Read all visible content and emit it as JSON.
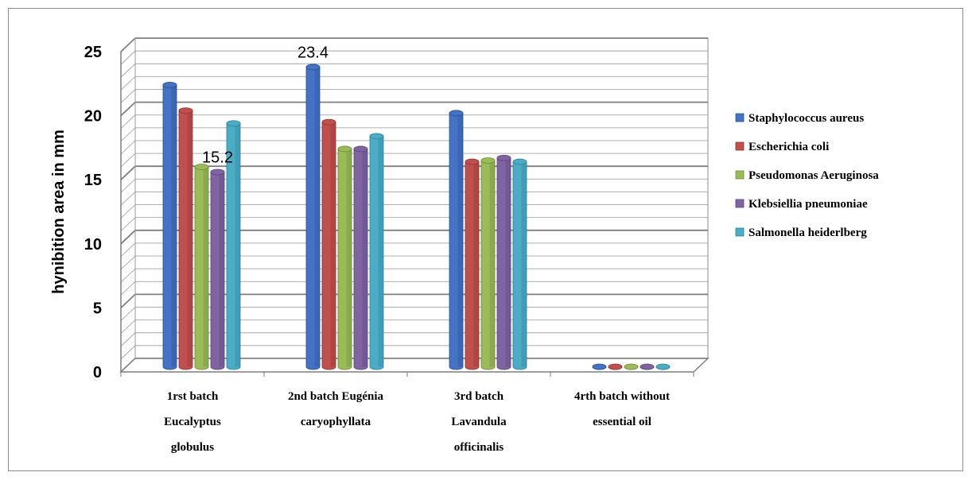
{
  "chart_data": {
    "type": "bar",
    "ylabel": "hynibition area in mm",
    "ylim": [
      0,
      25
    ],
    "yticks": [
      0,
      5,
      10,
      15,
      20,
      25
    ],
    "minor_gridline_step": 1,
    "grid": true,
    "legend_position": "right",
    "categories": [
      [
        "1rst  batch",
        "Eucalyptus",
        "globulus"
      ],
      [
        "2nd batch Eugénia",
        "caryophyllata"
      ],
      [
        "3rd batch",
        "Lavandula",
        "officinalis"
      ],
      [
        "4rth batch without",
        "essential oil"
      ]
    ],
    "series": [
      {
        "name": "Staphylococcus aureus",
        "color": "#4472c4",
        "dark": "#2c4f8e",
        "values": [
          22,
          23.4,
          19.8,
          0
        ]
      },
      {
        "name": "Escherichia coli",
        "color": "#c0504d",
        "dark": "#8e3532",
        "values": [
          20,
          19.1,
          16.0,
          0
        ]
      },
      {
        "name": "Pseudomonas  Aeruginosa",
        "color": "#9bbb59",
        "dark": "#6c8a38",
        "values": [
          15.6,
          17.0,
          16.1,
          0
        ]
      },
      {
        "name": "Klebsiellia pneumoniae",
        "color": "#8064a2",
        "dark": "#5a4578",
        "values": [
          15.2,
          17.0,
          16.3,
          0
        ]
      },
      {
        "name": "Salmonella heiderlberg",
        "color": "#4bacc6",
        "dark": "#2f8096",
        "values": [
          19.0,
          18.0,
          16.0,
          0
        ]
      }
    ],
    "data_labels": [
      {
        "series": 0,
        "category": 1,
        "text": "23.4"
      },
      {
        "series": 3,
        "category": 0,
        "text": "15.2"
      }
    ]
  }
}
